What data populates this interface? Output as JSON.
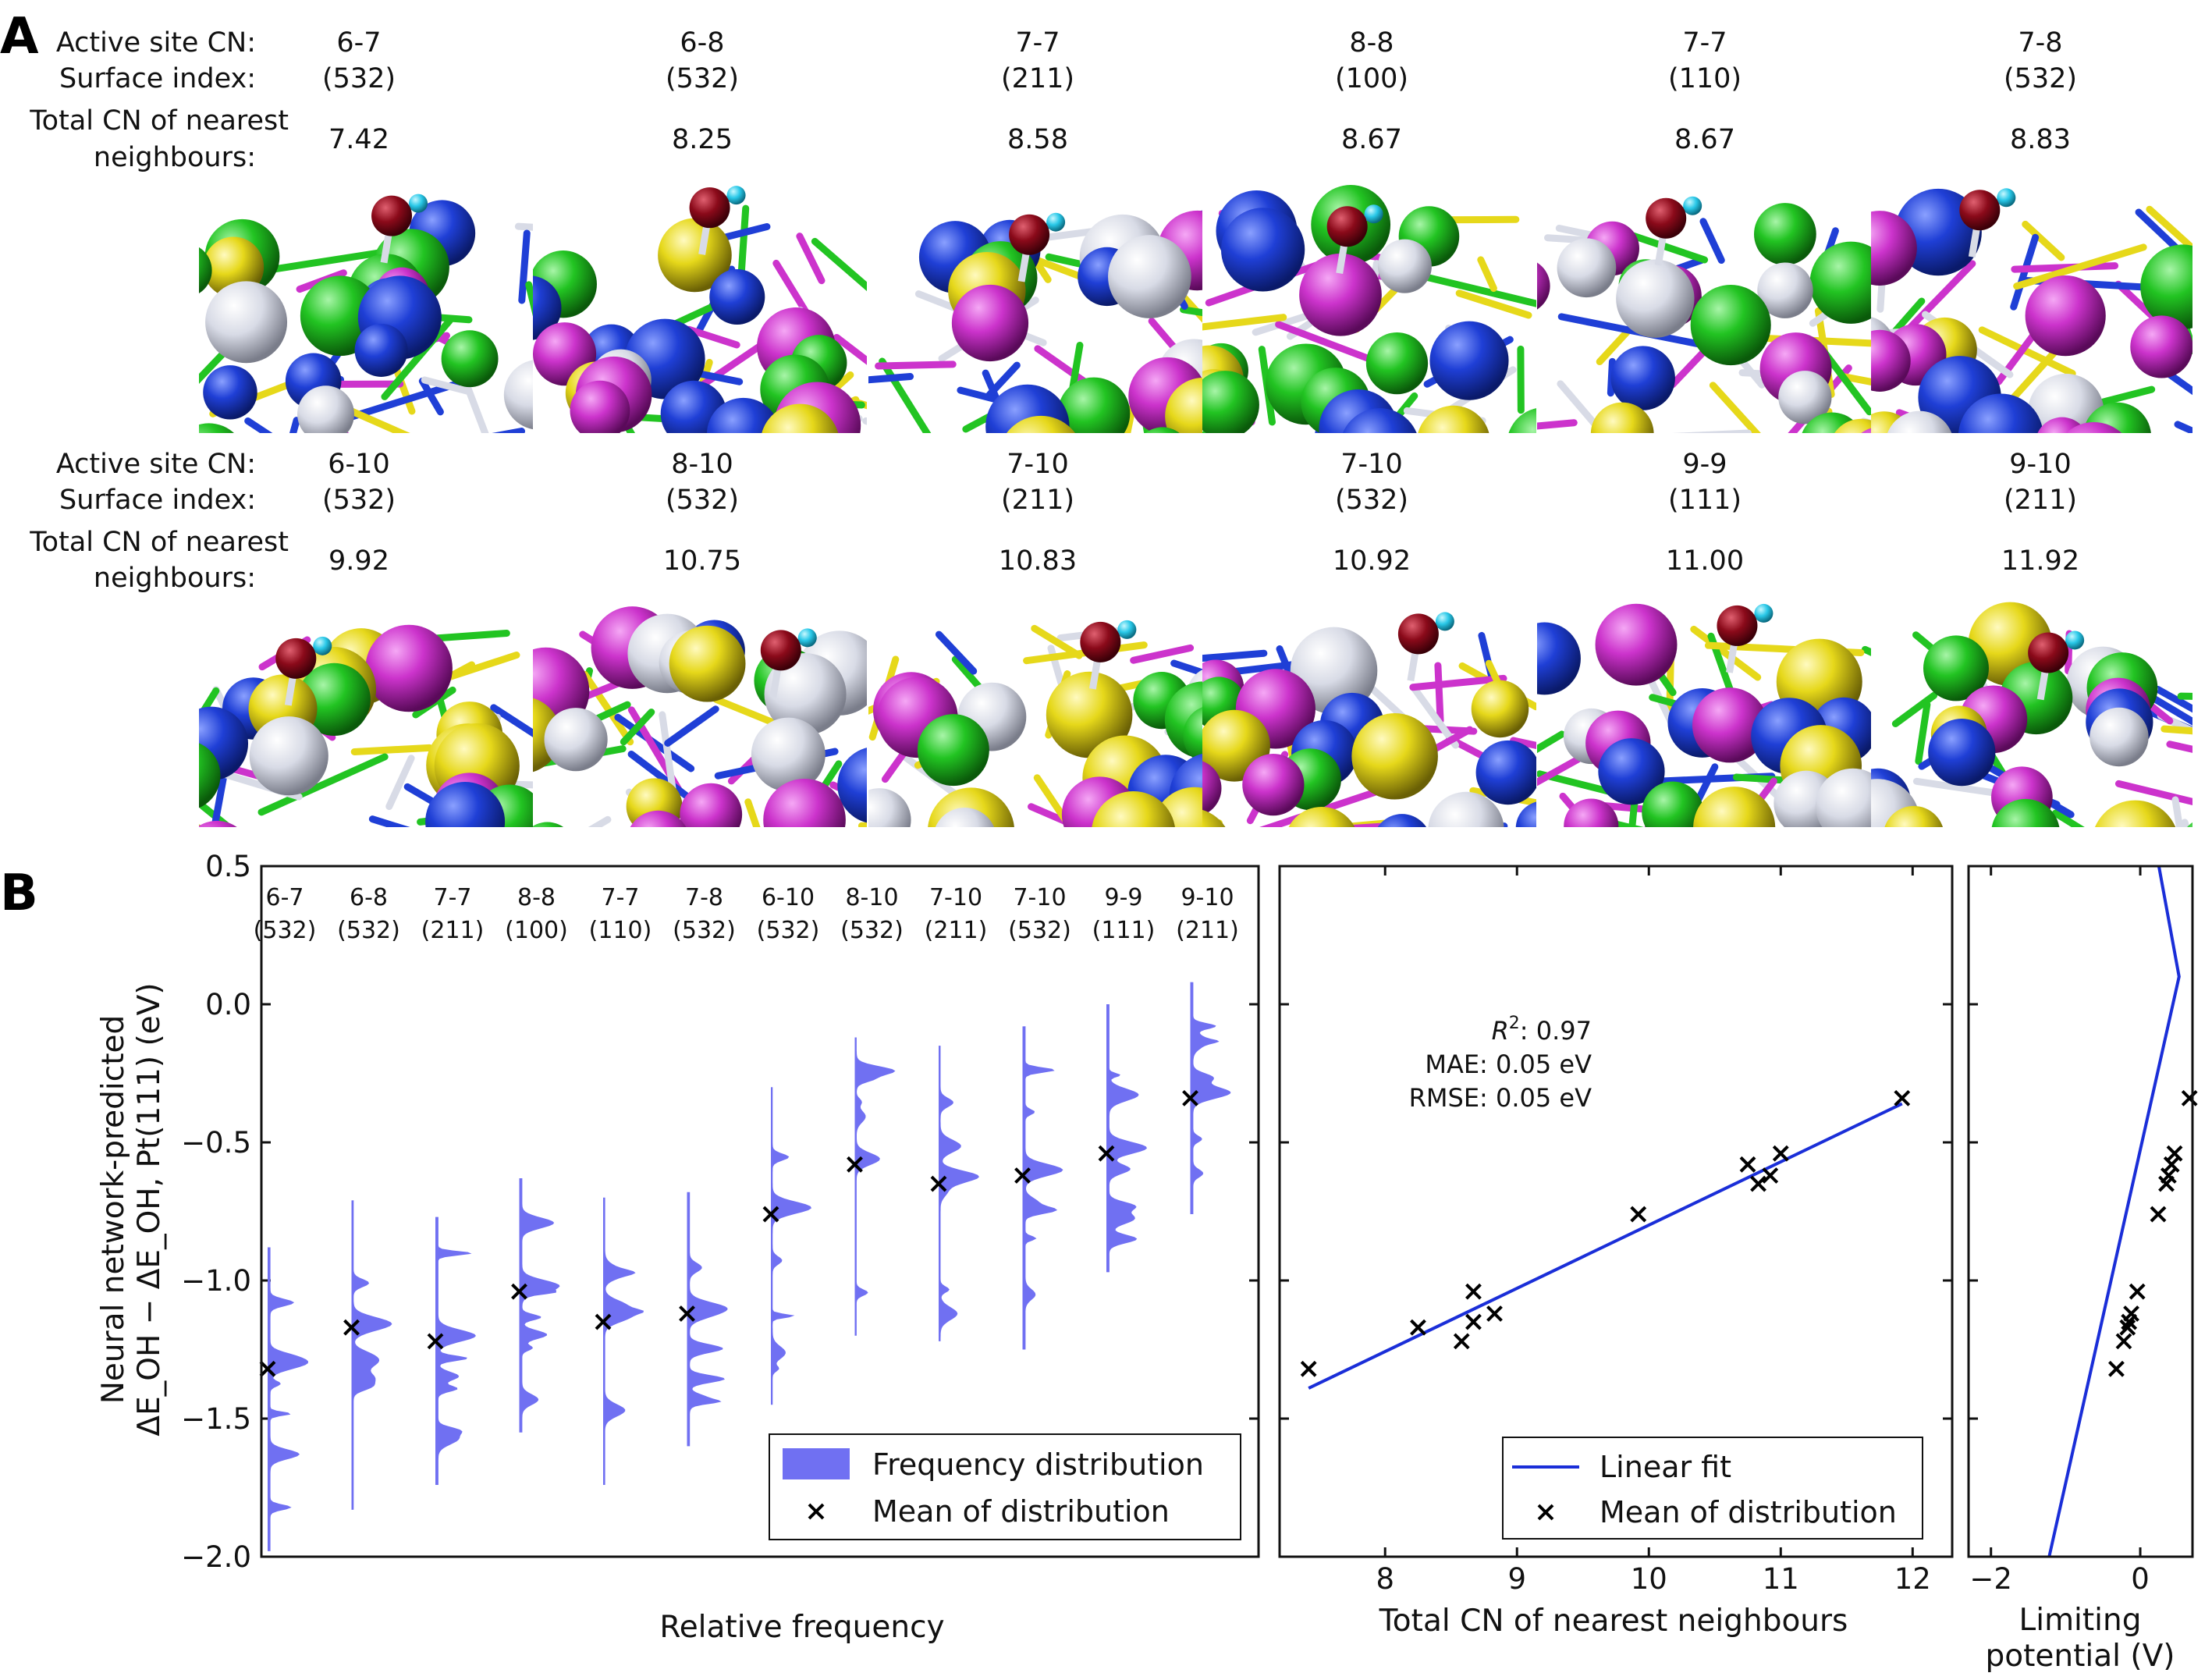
{
  "panel_a": {
    "letter": "A",
    "row_labels": {
      "active_site": "Active site CN:",
      "surface_index": "Surface index:",
      "total_cn_line1": "Total CN of nearest",
      "total_cn_line2": "neighbours:"
    },
    "rows": [
      {
        "sites": [
          {
            "cn": "6-7",
            "surface": "(532)",
            "total_cn": "7.42"
          },
          {
            "cn": "6-8",
            "surface": "(532)",
            "total_cn": "8.25"
          },
          {
            "cn": "7-7",
            "surface": "(211)",
            "total_cn": "8.58"
          },
          {
            "cn": "8-8",
            "surface": "(100)",
            "total_cn": "8.67"
          },
          {
            "cn": "7-7",
            "surface": "(110)",
            "total_cn": "8.67"
          },
          {
            "cn": "7-8",
            "surface": "(532)",
            "total_cn": "8.83"
          }
        ]
      },
      {
        "sites": [
          {
            "cn": "6-10",
            "surface": "(532)",
            "total_cn": "9.92"
          },
          {
            "cn": "8-10",
            "surface": "(532)",
            "total_cn": "10.75"
          },
          {
            "cn": "7-10",
            "surface": "(211)",
            "total_cn": "10.83"
          },
          {
            "cn": "7-10",
            "surface": "(532)",
            "total_cn": "10.92"
          },
          {
            "cn": "9-9",
            "surface": "(111)",
            "total_cn": "11.00"
          },
          {
            "cn": "9-10",
            "surface": "(211)",
            "total_cn": "11.92"
          }
        ]
      }
    ],
    "atom_colors": [
      "#1f3fd6",
      "#22c422",
      "#cc33cc",
      "#e6d81a",
      "#d8dbe6"
    ],
    "adsorbate_colors": {
      "oxygen": "#8b0a1a",
      "hydrogen": "#29c8e8"
    }
  },
  "panel_b": {
    "letter": "B",
    "chart_data": [
      {
        "type": "violin-histogram",
        "ylabel_line1": "Neural network-predicted",
        "ylabel_line2": "ΔE_OH − ΔE_OH, Pt(111) (eV)",
        "xlabel": "Relative frequency",
        "ylim": [
          -2.0,
          0.5
        ],
        "yticks": [
          "0.5",
          "0.0",
          "−0.5",
          "−1.0",
          "−1.5",
          "−2.0"
        ],
        "categories": [
          {
            "cn": "6-7",
            "surface": "(532)"
          },
          {
            "cn": "6-8",
            "surface": "(532)"
          },
          {
            "cn": "7-7",
            "surface": "(211)"
          },
          {
            "cn": "8-8",
            "surface": "(100)"
          },
          {
            "cn": "7-7",
            "surface": "(110)"
          },
          {
            "cn": "7-8",
            "surface": "(532)"
          },
          {
            "cn": "6-10",
            "surface": "(532)"
          },
          {
            "cn": "8-10",
            "surface": "(532)"
          },
          {
            "cn": "7-10",
            "surface": "(211)"
          },
          {
            "cn": "7-10",
            "surface": "(532)"
          },
          {
            "cn": "9-9",
            "surface": "(111)"
          },
          {
            "cn": "9-10",
            "surface": "(211)"
          }
        ],
        "means": [
          -1.32,
          -1.17,
          -1.22,
          -1.04,
          -1.15,
          -1.12,
          -0.76,
          -0.58,
          -0.65,
          -0.62,
          -0.54,
          -0.34
        ],
        "dist_ranges": [
          [
            -1.98,
            -0.88
          ],
          [
            -1.83,
            -0.71
          ],
          [
            -1.74,
            -0.77
          ],
          [
            -1.55,
            -0.63
          ],
          [
            -1.74,
            -0.7
          ],
          [
            -1.6,
            -0.68
          ],
          [
            -1.45,
            -0.3
          ],
          [
            -1.2,
            -0.12
          ],
          [
            -1.22,
            -0.15
          ],
          [
            -1.25,
            -0.08
          ],
          [
            -0.97,
            0.0
          ],
          [
            -0.76,
            0.08
          ]
        ],
        "legend": {
          "position": "lower-right",
          "dist_label": "Frequency distribution",
          "mean_label": "Mean of distribution"
        },
        "colors": {
          "fill": "#7070f2",
          "marker": "#000000"
        }
      },
      {
        "type": "scatter",
        "xlabel": "Total CN of nearest neighbours",
        "xlim": [
          7.2,
          12.3
        ],
        "xticks": [
          "8",
          "9",
          "10",
          "11",
          "12"
        ],
        "ylim": [
          -2.0,
          0.5
        ],
        "points": {
          "x": [
            7.42,
            8.25,
            8.58,
            8.67,
            8.67,
            8.83,
            9.92,
            10.75,
            10.83,
            10.92,
            11.0,
            11.92
          ],
          "y": [
            -1.32,
            -1.17,
            -1.22,
            -1.04,
            -1.15,
            -1.12,
            -0.76,
            -0.58,
            -0.65,
            -0.62,
            -0.54,
            -0.34
          ]
        },
        "fit": {
          "x": [
            7.42,
            11.92
          ],
          "y": [
            -1.39,
            -0.36
          ]
        },
        "stats": {
          "r2": "0.97",
          "mae": "0.05 eV",
          "rmse": "0.05 eV"
        },
        "legend": {
          "position": "lower-right",
          "fit_label": "Linear fit",
          "mean_label": "Mean of distribution"
        },
        "colors": {
          "line": "#1a2ed8",
          "marker": "#000000"
        }
      },
      {
        "type": "line",
        "xlabel_line1": "Limiting",
        "xlabel_line2": "potential (V)",
        "xlim": [
          -2.3,
          0.7
        ],
        "xticks": [
          "−2",
          "0"
        ],
        "ylim": [
          -2.0,
          0.5
        ],
        "volcano": {
          "x": [
            -1.22,
            0.52,
            0.25
          ],
          "y": [
            -2.0,
            0.1,
            0.5
          ]
        },
        "points": {
          "x": [
            -0.32,
            -0.17,
            -0.22,
            -0.04,
            -0.15,
            -0.12,
            0.24,
            0.42,
            0.35,
            0.38,
            0.46,
            0.66
          ],
          "y": [
            -1.32,
            -1.17,
            -1.22,
            -1.04,
            -1.15,
            -1.12,
            -0.76,
            -0.58,
            -0.65,
            -0.62,
            -0.54,
            -0.34
          ]
        },
        "colors": {
          "line": "#1a2ed8",
          "marker": "#000000"
        }
      }
    ]
  }
}
